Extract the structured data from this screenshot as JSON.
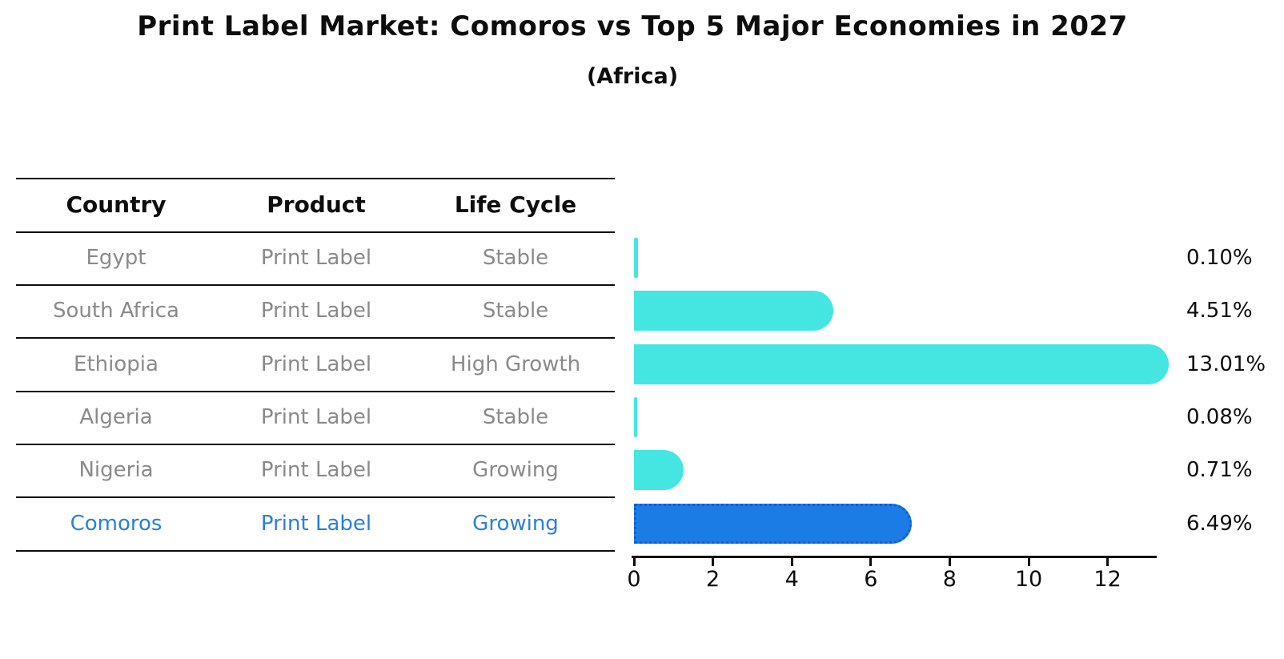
{
  "title": "Print Label Market: Comoros vs Top 5 Major Economies in 2027",
  "subtitle": "(Africa)",
  "table": {
    "headers": [
      "Country",
      "Product",
      "Life Cycle"
    ],
    "rows": [
      {
        "country": "Egypt",
        "product": "Print Label",
        "life_cycle": "Stable",
        "highlight": false
      },
      {
        "country": "South Africa",
        "product": "Print Label",
        "life_cycle": "Stable",
        "highlight": false
      },
      {
        "country": "Ethiopia",
        "product": "Print Label",
        "life_cycle": "High Growth",
        "highlight": false
      },
      {
        "country": "Algeria",
        "product": "Print Label",
        "life_cycle": "Stable",
        "highlight": false
      },
      {
        "country": "Nigeria",
        "product": "Print Label",
        "life_cycle": "Growing",
        "highlight": false
      },
      {
        "country": "Comoros",
        "product": "Print Label",
        "life_cycle": "Growing",
        "highlight": true
      }
    ]
  },
  "chart_data": {
    "type": "bar",
    "orientation": "horizontal",
    "title": "Print Label Market: Comoros vs Top 5 Major Economies in 2027",
    "subtitle": "(Africa)",
    "categories": [
      "Egypt",
      "South Africa",
      "Ethiopia",
      "Algeria",
      "Nigeria",
      "Comoros"
    ],
    "values": [
      0.1,
      4.51,
      13.01,
      0.08,
      0.71,
      6.49
    ],
    "value_labels": [
      "0.10%",
      "4.51%",
      "13.01%",
      "0.08%",
      "0.71%",
      "6.49%"
    ],
    "x_ticks": [
      0,
      2,
      4,
      6,
      8,
      10,
      12
    ],
    "xlim": [
      0,
      13.2
    ],
    "grid": false,
    "legend": "none",
    "highlight_index": 5,
    "colors": {
      "bar": "#45e6e2",
      "highlight_bar": "#1c7ce6",
      "highlight_border": "#0d5fd0",
      "axis": "#0d0d0d",
      "muted_text": "#8a8a8a",
      "highlight_text": "#2a7fd8"
    }
  }
}
